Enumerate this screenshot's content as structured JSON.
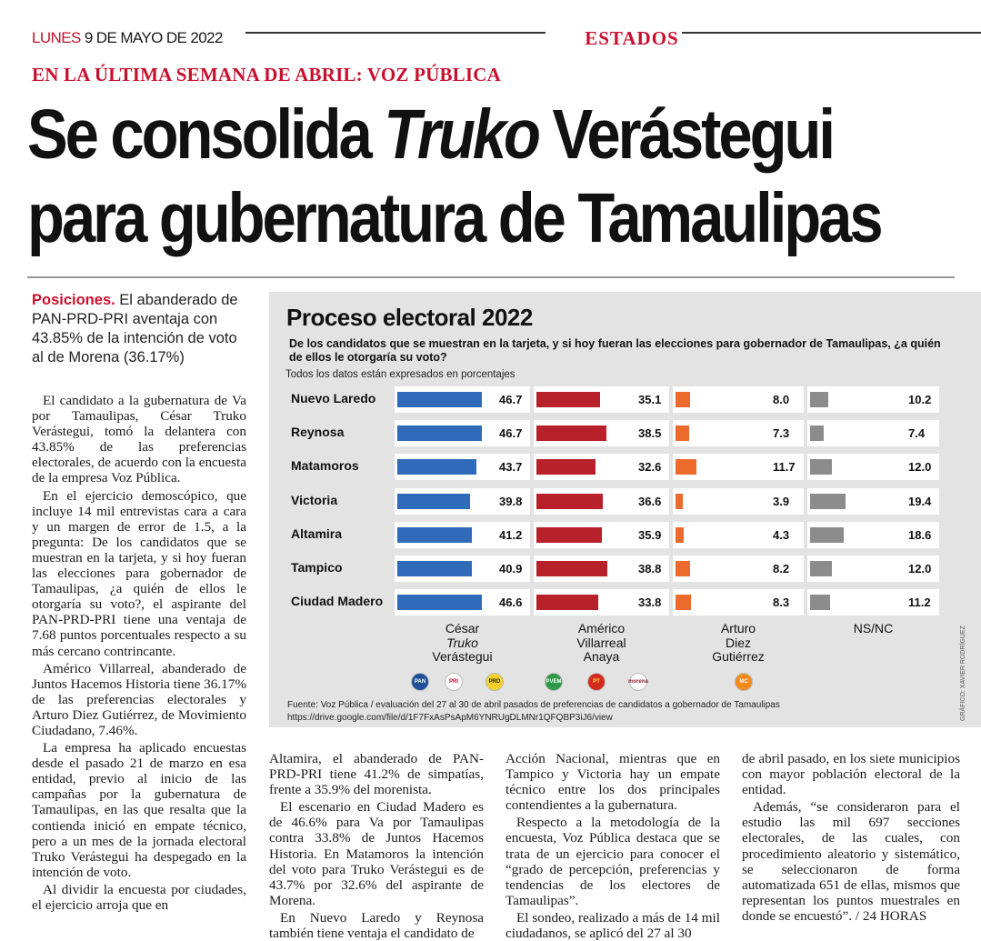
{
  "header": {
    "day": "LUNES",
    "date": "9 DE MAYO DE 2022",
    "section": "ESTADOS"
  },
  "article": {
    "kicker": "EN LA ÚLTIMA SEMANA DE ABRIL: VOZ PÚBLICA",
    "headline_1": "Se consolida ",
    "headline_2": "Truko",
    "headline_3": " Verástegui",
    "headline_4": "para gubernatura de Tamaulipas",
    "summary_lead": "Posiciones.",
    "summary_text": " El abanderado de PAN-PRD-PRI aventaja con 43.85% de la intención de voto al de Morena (36.17%)",
    "col1": [
      "El candidato a la gubernatura de Va por Tamaulipas, César Truko Verástegui, tomó la delantera con 43.85% de las preferencias electorales, de acuerdo con la encuesta de la empresa Voz Pública.",
      "En el ejercicio demoscópico, que incluye 14 mil entrevistas cara a cara y un margen de error de 1.5, a la pregunta: De los candidatos que se muestran en la tarjeta, y si hoy fueran las elecciones para gobernador de Tamaulipas, ¿a quién de ellos le otorgaría su voto?, el aspirante del PAN-PRD-PRI tiene una ventaja de 7.68 puntos porcentuales respecto a su más cercano contrincante.",
      "Américo Villarreal, abanderado de Juntos Hacemos Historia tiene 36.17% de las preferencias electorales y Arturo Diez Gutiérrez, de Movimiento Ciudadano, 7.46%.",
      "La empresa ha aplicado encuestas desde el pasado 21 de marzo en esa entidad, previo al inicio de las campañas por la gubernatura de Tamaulipas, en las que resalta que la contienda inició en empate técnico, pero a un mes de la jornada electoral Truko Verástegui ha despegado en la intención de voto.",
      "Al dividir la encuesta por ciudades, el ejercicio arroja que en"
    ],
    "col2": [
      "Altamira, el abanderado de PAN-PRD-PRI tiene 41.2% de simpatías, frente a 35.9% del morenista.",
      "El escenario en Ciudad Madero es de 46.6% para Va por Tamaulipas contra 33.8% de Juntos Hacemos Historia. En Matamoros la intención del voto para Truko Verástegui es de 43.7% por 32.6% del aspirante de Morena.",
      "En Nuevo Laredo y Reynosa también tiene ventaja el candidato de"
    ],
    "col3": [
      "Acción Nacional, mientras que en Tampico y Victoria hay un empate técnico entre los dos principales contendientes a la gubernatura.",
      "Respecto a la metodología de la encuesta, Voz Pública destaca que se trata de un ejercicio para conocer el “grado de percepción, preferencias y tendencias de los electores de Tamaulipas”.",
      "El sondeo, realizado a más de 14 mil ciudadanos, se aplicó del 27 al 30"
    ],
    "col4": [
      "de abril pasado, en los siete municipios con mayor población electoral de la entidad.",
      "Además, “se consideraron para el estudio las mil 697 secciones electorales, de las cuales, con procedimiento aleatorio y sistemático, se seleccionaron de forma automatizada 651 de ellas, mismos que representan los puntos muestrales en donde se encuestó”. / 24 HORAS"
    ]
  },
  "chart_data": {
    "type": "bar",
    "title": "Proceso electoral 2022",
    "question": "De los candidatos que se muestran en la tarjeta, y si hoy fueran las elecciones para gobernador de Tamaulipas, ¿a quién de ellos le otorgaría su voto?",
    "note": "Todos los datos están expresados en porcentajes",
    "categories": [
      "Nuevo Laredo",
      "Reynosa",
      "Matamoros",
      "Victoria",
      "Altamira",
      "Tampico",
      "Ciudad Madero"
    ],
    "series": [
      {
        "name_lines": [
          "César",
          "Truko",
          "Verástegui"
        ],
        "color": "#2f6bb8",
        "values": [
          46.7,
          46.7,
          43.7,
          39.8,
          41.2,
          40.9,
          46.6
        ],
        "labels": [
          "46.7",
          "46.7",
          "43.7",
          "39.8",
          "41.2",
          "40.9",
          "46.6"
        ]
      },
      {
        "name_lines": [
          "Américo",
          "Villarreal",
          "Anaya"
        ],
        "color": "#b8202a",
        "values": [
          35.1,
          38.5,
          32.6,
          36.6,
          35.9,
          38.8,
          33.8
        ],
        "labels": [
          "35.1",
          "38.5",
          "32.6",
          "36.6",
          "35.9",
          "38.8",
          "33.8"
        ]
      },
      {
        "name_lines": [
          "Arturo",
          "Diez",
          "Gutiérrez"
        ],
        "color": "#ec6a2c",
        "values": [
          8.0,
          7.3,
          11.7,
          3.9,
          4.3,
          8.2,
          8.3
        ],
        "labels": [
          "8.0",
          "7.3",
          "11.7",
          "3.9",
          "4.3",
          "8.2",
          "8.3"
        ]
      },
      {
        "name_lines": [
          "NS/NC"
        ],
        "color": "#8c8c8c",
        "values": [
          10.2,
          7.4,
          12.0,
          19.4,
          18.6,
          12.0,
          11.2
        ],
        "labels": [
          "10.2",
          "7.4",
          "12.0",
          "19.4",
          "18.6",
          "12.0",
          "11.2"
        ]
      }
    ],
    "source_1": "Fuente: Voz Pública / evaluación del 27 al 30 de abril pasados de preferencias de candidatos a gobernador de Tamaulipas",
    "source_2": "https://drive.google.com/file/d/1F7FxAsPsApM6YNRUgDLMNr1QFQBP3iJ6/view",
    "credit": "GRÁFICO: XAVIER RODRÍGUEZ",
    "logos": [
      {
        "label": "PAN",
        "color": "#1f4e9a",
        "text_color": "#ffffff"
      },
      {
        "label": "PRI",
        "color": "#ffffff",
        "text_color": "#c8102e"
      },
      {
        "label": "PRD",
        "color": "#f6d02a",
        "text_color": "#222222"
      },
      {
        "label": "PVEM",
        "color": "#2e9a47",
        "text_color": "#ffffff"
      },
      {
        "label": "PT",
        "color": "#d52b1e",
        "text_color": "#ffe14a"
      },
      {
        "label": "morena",
        "color": "#ffffff",
        "text_color": "#8a1c2b"
      },
      {
        "label": "MC",
        "color": "#f28a1c",
        "text_color": "#ffffff"
      }
    ]
  }
}
